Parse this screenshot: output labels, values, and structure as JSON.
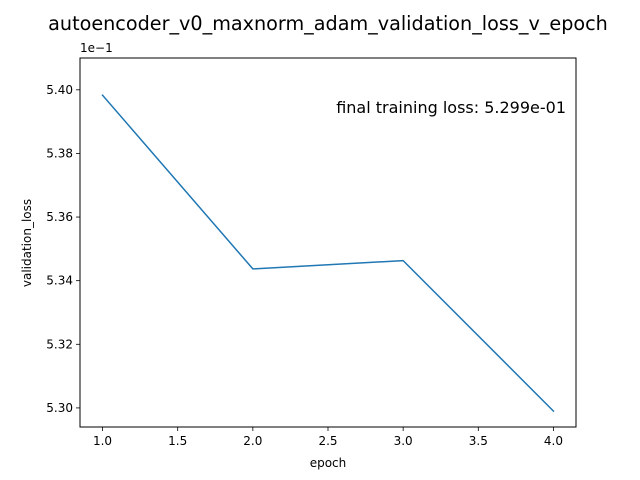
{
  "chart_data": {
    "type": "line",
    "title": "autoencoder_v0_maxnorm_adam_validation_loss_v_epoch",
    "xlabel": "epoch",
    "ylabel": "validation_loss",
    "y_offset_label": "1e−1",
    "annotation": "final training loss: 5.299e-01",
    "x_ticks": [
      1.0,
      1.5,
      2.0,
      2.5,
      3.0,
      3.5,
      4.0
    ],
    "x_tick_labels": [
      "1.0",
      "1.5",
      "2.0",
      "2.5",
      "3.0",
      "3.5",
      "4.0"
    ],
    "y_ticks": [
      5.3,
      5.32,
      5.34,
      5.36,
      5.38,
      5.4
    ],
    "y_tick_labels": [
      "5.30",
      "5.32",
      "5.34",
      "5.36",
      "5.38",
      "5.40"
    ],
    "xlim": [
      0.85,
      4.15
    ],
    "ylim": [
      5.294,
      5.41
    ],
    "grid": false,
    "series": [
      {
        "x": [
          1.0,
          2.0,
          3.0,
          4.0
        ],
        "y": [
          5.3983,
          5.3437,
          5.3463,
          5.299
        ],
        "color": "#1f77b4"
      }
    ]
  }
}
